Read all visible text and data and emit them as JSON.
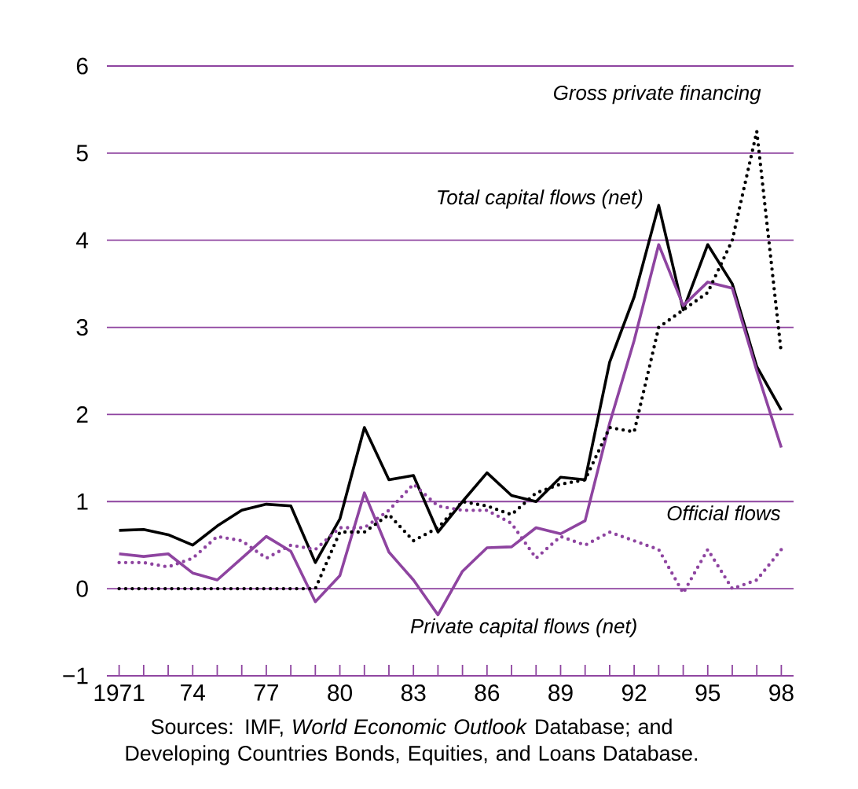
{
  "chart_data": {
    "type": "line",
    "x": [
      1971,
      1972,
      1973,
      1974,
      1975,
      1976,
      1977,
      1978,
      1979,
      1980,
      1981,
      1982,
      1983,
      1984,
      1985,
      1986,
      1987,
      1988,
      1989,
      1990,
      1991,
      1992,
      1993,
      1994,
      1995,
      1996,
      1997,
      1998
    ],
    "series": [
      {
        "name": "Total capital flows (net)",
        "color": "#000000",
        "line_style": "solid",
        "values": [
          0.67,
          0.68,
          0.62,
          0.5,
          0.72,
          0.9,
          0.97,
          0.95,
          0.3,
          0.8,
          1.85,
          1.25,
          1.3,
          0.65,
          1.0,
          1.33,
          1.07,
          1.0,
          1.28,
          1.25,
          2.6,
          3.35,
          4.4,
          3.2,
          3.95,
          3.5,
          2.55,
          2.05
        ]
      },
      {
        "name": "Private capital flows (net)",
        "color": "#8e44a0",
        "line_style": "solid",
        "values": [
          0.4,
          0.37,
          0.4,
          0.18,
          0.1,
          0.35,
          0.6,
          0.43,
          -0.15,
          0.15,
          1.1,
          0.42,
          0.1,
          -0.3,
          0.2,
          0.47,
          0.48,
          0.7,
          0.63,
          0.78,
          1.9,
          2.85,
          3.95,
          3.25,
          3.52,
          3.45,
          2.5,
          1.62
        ]
      },
      {
        "name": "Gross private financing",
        "color": "#000000",
        "line_style": "dotted",
        "values": [
          0,
          0,
          0,
          0,
          0,
          0,
          0,
          0,
          0,
          0.65,
          0.65,
          0.85,
          0.55,
          0.7,
          1.0,
          0.95,
          0.85,
          1.1,
          1.2,
          1.25,
          1.85,
          1.8,
          3.0,
          3.2,
          3.4,
          4.0,
          5.25,
          2.7
        ]
      },
      {
        "name": "Official flows",
        "color": "#8e44a0",
        "line_style": "dotted",
        "values": [
          0.3,
          0.3,
          0.25,
          0.35,
          0.6,
          0.55,
          0.35,
          0.5,
          0.45,
          0.7,
          0.7,
          0.9,
          1.2,
          0.95,
          0.9,
          0.9,
          0.75,
          0.35,
          0.6,
          0.5,
          0.65,
          0.55,
          0.45,
          -0.05,
          0.45,
          0.0,
          0.1,
          0.45
        ]
      }
    ],
    "xlim": [
      1970.5,
      1998.5
    ],
    "xticks": [
      1971,
      {
        "value": 1972,
        "label": null
      },
      {
        "value": 1973,
        "label": null
      },
      {
        "value": 1974,
        "label": "74"
      },
      {
        "value": 1975,
        "label": null
      },
      {
        "value": 1976,
        "label": null
      },
      {
        "value": 1977,
        "label": "77"
      },
      {
        "value": 1978,
        "label": null
      },
      {
        "value": 1979,
        "label": null
      },
      {
        "value": 1980,
        "label": "80"
      },
      {
        "value": 1981,
        "label": null
      },
      {
        "value": 1982,
        "label": null
      },
      {
        "value": 1983,
        "label": "83"
      },
      {
        "value": 1984,
        "label": null
      },
      {
        "value": 1985,
        "label": null
      },
      {
        "value": 1986,
        "label": "86"
      },
      {
        "value": 1987,
        "label": null
      },
      {
        "value": 1988,
        "label": null
      },
      {
        "value": 1989,
        "label": "89"
      },
      {
        "value": 1990,
        "label": null
      },
      {
        "value": 1991,
        "label": null
      },
      {
        "value": 1992,
        "label": "92"
      },
      {
        "value": 1993,
        "label": null
      },
      {
        "value": 1994,
        "label": null
      },
      {
        "value": 1995,
        "label": "95"
      },
      {
        "value": 1996,
        "label": null
      },
      {
        "value": 1997,
        "label": null
      },
      {
        "value": 1998,
        "label": "98"
      }
    ],
    "ylim": [
      -1,
      6
    ],
    "yticks": [
      {
        "value": -1,
        "label": "−1"
      },
      0,
      1,
      2,
      3,
      4,
      5,
      6
    ],
    "grid": "y",
    "marker": "none",
    "annotations": [
      "Sources:  IMF, *World Economic Outlook* Database; and Developing Countries Bonds, Equities, and Loans Database."
    ]
  }
}
